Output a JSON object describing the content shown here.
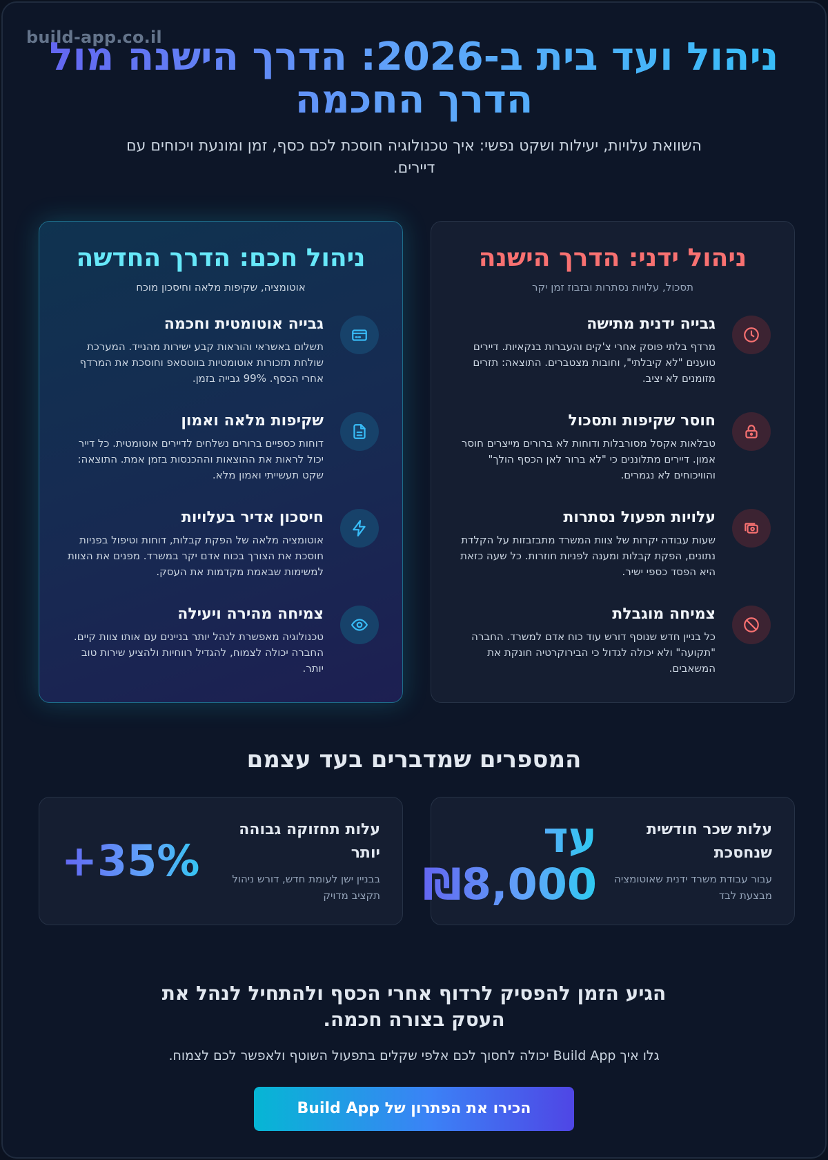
{
  "watermark": "build-app.co.il",
  "hero": {
    "title": "ניהול ועד בית ב-2026: הדרך הישנה מול הדרך החכמה",
    "subtitle": "השוואת עלויות, יעילות ושקט נפשי: איך טכנולוגיה חוסכת לכם כסף, זמן ומונעת ויכוחים עם דיירים."
  },
  "old_way": {
    "title": "ניהול ידני: הדרך הישנה",
    "subtitle": "תסכול, עלויות נסתרות ובזבוז זמן יקר",
    "items": [
      {
        "icon": "clock-icon",
        "title": "גבייה ידנית מתישה",
        "desc": "מרדף בלתי פוסק אחרי צ'קים והעברות בנקאיות. דיירים טוענים \"לא קיבלתי\", וחובות מצטברים. התוצאה: תזרים מזומנים לא יציב."
      },
      {
        "icon": "lock-icon",
        "title": "חוסר שקיפות ותסכול",
        "desc": "טבלאות אקסל מסורבלות ודוחות לא ברורים מייצרים חוסר אמון. דיירים מתלוננים כי \"לא ברור לאן הכסף הולך\" והוויכוחים לא נגמרים."
      },
      {
        "icon": "cash-icon",
        "title": "עלויות תפעול נסתרות",
        "desc": "שעות עבודה יקרות של צוות המשרד מתבזבזות על הקלדת נתונים, הפקת קבלות ומענה לפניות חוזרות. כל שעה כזאת היא הפסד כספי ישיר."
      },
      {
        "icon": "ban-icon",
        "title": "צמיחה מוגבלת",
        "desc": "כל בניין חדש שנוסף דורש עוד כוח אדם למשרד. החברה \"תקועה\" ולא יכולה לגדול כי הבירוקרטיה חונקת את המשאבים."
      }
    ]
  },
  "new_way": {
    "title": "ניהול חכם: הדרך החדשה",
    "subtitle": "אוטומציה, שקיפות מלאה וחיסכון מוכח",
    "items": [
      {
        "icon": "credit-card-icon",
        "title": "גבייה אוטומטית וחכמה",
        "desc": "תשלום באשראי והוראות קבע ישירות מהנייד. המערכת שולחת תזכורות אוטומטיות בווטסאפ וחוסכת את המרדף אחרי הכסף. 99% גבייה בזמן."
      },
      {
        "icon": "document-icon",
        "title": "שקיפות מלאה ואמון",
        "desc": "דוחות כספיים ברורים נשלחים לדיירים אוטומטית. כל דייר יכול לראות את ההוצאות וההכנסות בזמן אמת. התוצאה: שקט תעשייתי ואמון מלא."
      },
      {
        "icon": "lightning-icon",
        "title": "חיסכון אדיר בעלויות",
        "desc": "אוטומציה מלאה של הפקת קבלות, דוחות וטיפול בפניות חוסכת את הצורך בכוח אדם יקר במשרד. מפנים את הצוות למשימות שבאמת מקדמות את העסק."
      },
      {
        "icon": "eye-icon",
        "title": "צמיחה מהירה ויעילה",
        "desc": "טכנולוגיה מאפשרת לנהל יותר בניינים עם אותו צוות קיים. החברה יכולה לצמוח, להגדיל רווחיות ולהציע שירות טוב יותר."
      }
    ]
  },
  "stats": {
    "heading": "המספרים שמדברים בעד עצמם",
    "items": [
      {
        "label": "עלות שכר חודשית שנחסכת",
        "desc": "עבור עבודת משרד ידנית שאוטומציה מבצעת לבד",
        "value": "עד ₪8,000"
      },
      {
        "label": "עלות תחזוקה גבוהה יותר",
        "desc": "בבניין ישן לעומת חדש, דורש ניהול תקציב מדויק",
        "value": "+35%"
      }
    ]
  },
  "cta": {
    "title": "הגיע הזמן להפסיק לרדוף אחרי הכסף ולהתחיל לנהל את העסק בצורה חכמה.",
    "subtitle": "גלו איך Build App יכולה לחסוך לכם אלפי שקלים בתפעול השוטף ולאפשר לכם לצמוח.",
    "button_label": "הכירו את הפתרון של Build App"
  },
  "colors": {
    "old_accent": "#f87171",
    "new_accent": "#67e8f9",
    "gradient_start": "#6366f1",
    "gradient_end": "#22d3ee"
  }
}
